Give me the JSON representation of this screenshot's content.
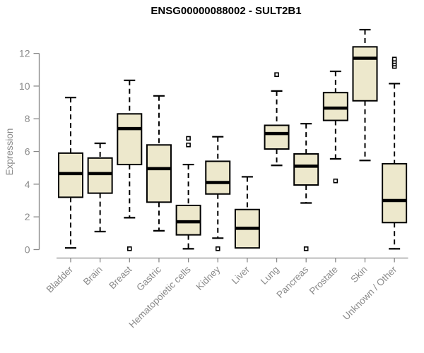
{
  "title": "ENSG00000088002 - SULT2B1",
  "chart_data": {
    "type": "box",
    "title": "ENSG00000088002 - SULT2B1",
    "xlabel": "",
    "ylabel": "Expression",
    "ylim": [
      0,
      12
    ],
    "yticks": [
      0,
      2,
      4,
      6,
      8,
      10,
      12
    ],
    "grid": false,
    "legend": false,
    "categories": [
      "Bladder",
      "Brain",
      "Breast",
      "Gastric",
      "Hematopoietic cells",
      "Kidney",
      "Liver",
      "Lung",
      "Pancreas",
      "Prostate",
      "Skin",
      "Unknown / Other"
    ],
    "series": [
      {
        "category": "Bladder",
        "low": 0.1,
        "q1": 3.2,
        "median": 4.65,
        "q3": 5.9,
        "high": 9.3,
        "outliers": []
      },
      {
        "category": "Brain",
        "low": 1.1,
        "q1": 3.45,
        "median": 4.65,
        "q3": 5.6,
        "high": 6.5,
        "outliers": []
      },
      {
        "category": "Breast",
        "low": 1.95,
        "q1": 5.2,
        "median": 7.4,
        "q3": 8.3,
        "high": 10.35,
        "outliers": [
          0.05
        ]
      },
      {
        "category": "Gastric",
        "low": 1.15,
        "q1": 2.9,
        "median": 4.95,
        "q3": 6.4,
        "high": 9.4,
        "outliers": []
      },
      {
        "category": "Hematopoietic cells",
        "low": 0.05,
        "q1": 0.9,
        "median": 1.7,
        "q3": 2.7,
        "high": 5.2,
        "outliers": [
          6.4,
          6.8
        ]
      },
      {
        "category": "Kidney",
        "low": 0.7,
        "q1": 3.4,
        "median": 4.1,
        "q3": 5.4,
        "high": 6.9,
        "outliers": [
          0.05
        ]
      },
      {
        "category": "Liver",
        "low": 0.1,
        "q1": 0.1,
        "median": 1.3,
        "q3": 2.45,
        "high": 4.45,
        "outliers": []
      },
      {
        "category": "Lung",
        "low": 5.15,
        "q1": 6.15,
        "median": 7.1,
        "q3": 7.6,
        "high": 9.7,
        "outliers": [
          10.7
        ]
      },
      {
        "category": "Pancreas",
        "low": 2.85,
        "q1": 3.95,
        "median": 5.1,
        "q3": 5.85,
        "high": 7.7,
        "outliers": [
          0.05
        ]
      },
      {
        "category": "Prostate",
        "low": 5.55,
        "q1": 7.9,
        "median": 8.65,
        "q3": 9.6,
        "high": 10.9,
        "outliers": [
          4.2
        ]
      },
      {
        "category": "Skin",
        "low": 5.45,
        "q1": 9.1,
        "median": 11.7,
        "q3": 12.4,
        "high": 13.45,
        "outliers": []
      },
      {
        "category": "Unknown / Other",
        "low": 0.05,
        "q1": 1.65,
        "median": 3.0,
        "q3": 5.25,
        "high": 10.15,
        "outliers": [
          11.2,
          11.35,
          11.5,
          11.65
        ]
      }
    ],
    "colors": {
      "box_fill": "#EDE8CC",
      "box_border": "#000000",
      "median": "#000000",
      "axis": "#888888",
      "tick_label": "#8A8A8A",
      "title": "#000000",
      "background": "#FFFFFF"
    }
  }
}
